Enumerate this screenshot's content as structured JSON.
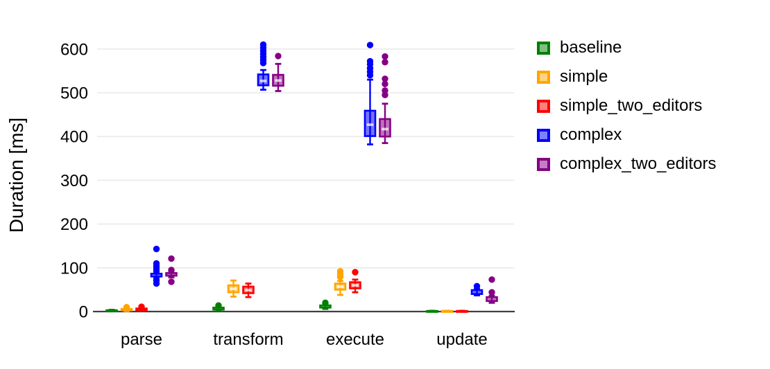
{
  "chart_data": {
    "type": "boxplot",
    "title": "",
    "xlabel": "",
    "ylabel": "Duration [ms]",
    "ylim": [
      0,
      620
    ],
    "yticks": [
      0,
      100,
      200,
      300,
      400,
      500,
      600
    ],
    "categories": [
      "parse",
      "transform",
      "execute",
      "update"
    ],
    "grid": true,
    "grid_color": "#e9e9e9",
    "axis_color": "#3f3f3f",
    "legend_position": "right",
    "box_fill_opacity": 0.55,
    "series": [
      {
        "name": "baseline",
        "color": "#008000",
        "boxes": [
          {
            "lo": 0.5,
            "q1": 1.2,
            "med": 2,
            "q3": 3,
            "hi": 4,
            "out": []
          },
          {
            "lo": 2,
            "q1": 4.5,
            "med": 6.5,
            "q3": 9,
            "hi": 12,
            "out": [
              14
            ]
          },
          {
            "lo": 6,
            "q1": 9,
            "med": 11.5,
            "q3": 14,
            "hi": 17,
            "out": [
              20
            ]
          },
          {
            "lo": 0.3,
            "q1": 0.6,
            "med": 1,
            "q3": 1.4,
            "hi": 1.8,
            "out": []
          }
        ]
      },
      {
        "name": "simple",
        "color": "#FFA500",
        "boxes": [
          {
            "lo": 1,
            "q1": 3,
            "med": 4.5,
            "q3": 6,
            "hi": 8,
            "out": [
              10
            ]
          },
          {
            "lo": 34,
            "q1": 44,
            "med": 52,
            "q3": 60,
            "hi": 71,
            "out": []
          },
          {
            "lo": 38,
            "q1": 50,
            "med": 57,
            "q3": 64,
            "hi": 70,
            "out": [
              79,
              85,
              92
            ]
          },
          {
            "lo": 0.3,
            "q1": 0.6,
            "med": 1,
            "q3": 1.4,
            "hi": 1.8,
            "out": []
          }
        ]
      },
      {
        "name": "simple_two_editors",
        "color": "#FF0000",
        "boxes": [
          {
            "lo": 1.5,
            "q1": 3.5,
            "med": 5,
            "q3": 7,
            "hi": 9,
            "out": [
              11
            ]
          },
          {
            "lo": 33,
            "q1": 42,
            "med": 49,
            "q3": 57,
            "hi": 64,
            "out": []
          },
          {
            "lo": 44,
            "q1": 53,
            "med": 60,
            "q3": 67,
            "hi": 73,
            "out": [
              90
            ]
          },
          {
            "lo": 0.3,
            "q1": 0.6,
            "med": 1,
            "q3": 1.4,
            "hi": 1.8,
            "out": []
          }
        ]
      },
      {
        "name": "complex",
        "color": "#0000FF",
        "boxes": [
          {
            "lo": 76,
            "q1": 80,
            "med": 83,
            "q3": 86.5,
            "hi": 90,
            "out": [
              93,
              99,
              104,
              110,
              143,
              71,
              64
            ]
          },
          {
            "lo": 507,
            "q1": 517,
            "med": 527,
            "q3": 542,
            "hi": 552,
            "out": [
              568,
              575,
              582,
              589,
              596,
              603,
              610
            ]
          },
          {
            "lo": 382,
            "q1": 401,
            "med": 427,
            "q3": 459,
            "hi": 530,
            "out": [
              540,
              548,
              556,
              565,
              572,
              609
            ]
          },
          {
            "lo": 37,
            "q1": 40,
            "med": 44,
            "q3": 49,
            "hi": 52,
            "out": [
              58
            ]
          }
        ]
      },
      {
        "name": "complex_two_editors",
        "color": "#850085",
        "boxes": [
          {
            "lo": 78,
            "q1": 82,
            "med": 85,
            "q3": 88,
            "hi": 92,
            "out": [
              95,
              121,
              68
            ]
          },
          {
            "lo": 504,
            "q1": 516,
            "med": 528,
            "q3": 541,
            "hi": 566,
            "out": [
              584
            ]
          },
          {
            "lo": 385,
            "q1": 400,
            "med": 417,
            "q3": 440,
            "hi": 475,
            "out": [
              495,
              505,
              520,
              532,
              570,
              583
            ]
          },
          {
            "lo": 20,
            "q1": 24,
            "med": 28,
            "q3": 33,
            "hi": 36,
            "out": [
              44,
              73
            ]
          }
        ]
      }
    ]
  }
}
